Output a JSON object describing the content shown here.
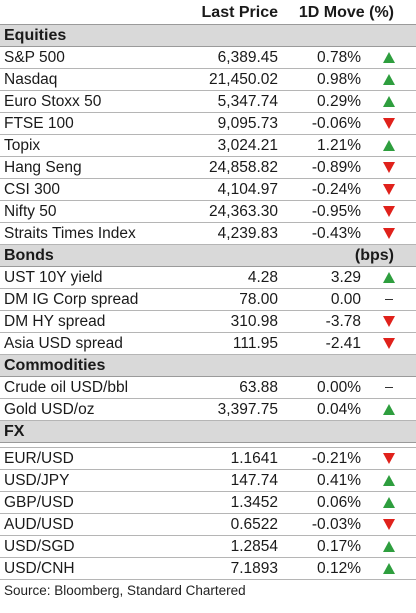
{
  "header": {
    "last_price": "Last Price",
    "move": "1D Move (%)"
  },
  "sections": [
    {
      "name": "Equities",
      "unit": "",
      "rows": [
        {
          "name": "S&P 500",
          "price": "6,389.45",
          "move": "0.78%",
          "dir": "up"
        },
        {
          "name": "Nasdaq",
          "price": "21,450.02",
          "move": "0.98%",
          "dir": "up"
        },
        {
          "name": "Euro Stoxx 50",
          "price": "5,347.74",
          "move": "0.29%",
          "dir": "up"
        },
        {
          "name": "FTSE 100",
          "price": "9,095.73",
          "move": "-0.06%",
          "dir": "down"
        },
        {
          "name": "Topix",
          "price": "3,024.21",
          "move": "1.21%",
          "dir": "up"
        },
        {
          "name": "Hang Seng",
          "price": "24,858.82",
          "move": "-0.89%",
          "dir": "down"
        },
        {
          "name": "CSI 300",
          "price": "4,104.97",
          "move": "-0.24%",
          "dir": "down"
        },
        {
          "name": "Nifty 50",
          "price": "24,363.30",
          "move": "-0.95%",
          "dir": "down"
        },
        {
          "name": "Straits Times Index",
          "price": "4,239.83",
          "move": "-0.43%",
          "dir": "down"
        }
      ]
    },
    {
      "name": "Bonds",
      "unit": "(bps)",
      "rows": [
        {
          "name": "UST 10Y yield",
          "price": "4.28",
          "move": "3.29",
          "dir": "up"
        },
        {
          "name": "DM IG Corp spread",
          "price": "78.00",
          "move": "0.00",
          "dir": "flat"
        },
        {
          "name": "DM HY spread",
          "price": "310.98",
          "move": "-3.78",
          "dir": "down"
        },
        {
          "name": "Asia USD spread",
          "price": "111.95",
          "move": "-2.41",
          "dir": "down"
        }
      ]
    },
    {
      "name": "Commodities",
      "unit": "",
      "rows": [
        {
          "name": "Crude oil USD/bbl",
          "price": "63.88",
          "move": "0.00%",
          "dir": "flat"
        },
        {
          "name": "Gold USD/oz",
          "price": "3,397.75",
          "move": "0.04%",
          "dir": "up"
        }
      ]
    },
    {
      "name": "FX",
      "unit": "",
      "gap": true,
      "rows": [
        {
          "name": "EUR/USD",
          "price": "1.1641",
          "move": "-0.21%",
          "dir": "down"
        },
        {
          "name": "USD/JPY",
          "price": "147.74",
          "move": "0.41%",
          "dir": "up"
        },
        {
          "name": "GBP/USD",
          "price": "1.3452",
          "move": "0.06%",
          "dir": "up"
        },
        {
          "name": "AUD/USD",
          "price": "0.6522",
          "move": "-0.03%",
          "dir": "down"
        },
        {
          "name": "USD/SGD",
          "price": "1.2854",
          "move": "0.17%",
          "dir": "up"
        },
        {
          "name": "USD/CNH",
          "price": "7.1893",
          "move": "0.12%",
          "dir": "up"
        }
      ]
    }
  ],
  "source": "Source: Bloomberg, Standard Chartered",
  "colors": {
    "up": "#2e9e3e",
    "down": "#e0211b"
  }
}
